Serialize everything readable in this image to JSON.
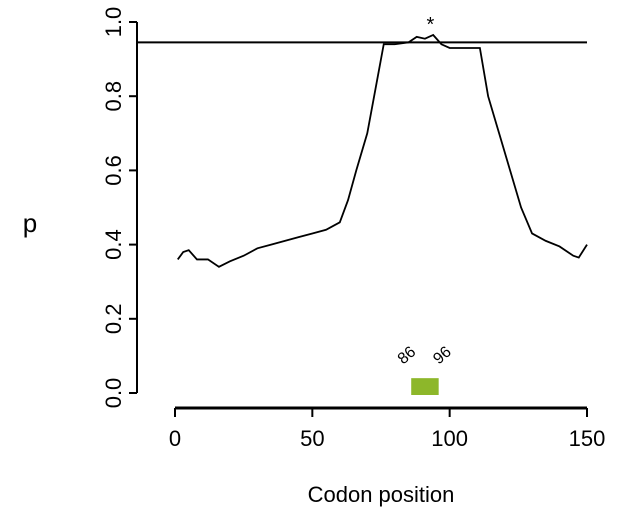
{
  "chart_data": {
    "type": "line",
    "x_label": "Codon position",
    "y_label": "p",
    "x": [
      1,
      3,
      5,
      8,
      12,
      16,
      20,
      25,
      30,
      35,
      40,
      45,
      50,
      55,
      60,
      63,
      66,
      70,
      73,
      76,
      80,
      85,
      88,
      91,
      94,
      97,
      100,
      105,
      108,
      111,
      114,
      118,
      122,
      126,
      130,
      135,
      140,
      145,
      147,
      150
    ],
    "values": [
      0.36,
      0.38,
      0.385,
      0.36,
      0.36,
      0.34,
      0.355,
      0.37,
      0.39,
      0.4,
      0.41,
      0.42,
      0.43,
      0.44,
      0.46,
      0.52,
      0.6,
      0.7,
      0.82,
      0.94,
      0.94,
      0.945,
      0.96,
      0.955,
      0.965,
      0.94,
      0.93,
      0.93,
      0.93,
      0.93,
      0.8,
      0.7,
      0.6,
      0.5,
      0.43,
      0.41,
      0.395,
      0.37,
      0.365,
      0.4
    ],
    "color": "#000000",
    "threshold": 0.945,
    "annotation": {
      "text": "*",
      "x": 93,
      "y": 0.99
    },
    "region": {
      "start": 86,
      "end": 96,
      "color": "#8db72a"
    },
    "xlim": [
      0,
      150
    ],
    "xticks": [
      0,
      50,
      100,
      150
    ],
    "ylim": [
      0,
      1
    ],
    "yticks": [
      {
        "value": 0,
        "label": "0.0"
      },
      0.2,
      0.4,
      0.6,
      0.8,
      {
        "value": 1,
        "label": "1.0"
      }
    ]
  }
}
